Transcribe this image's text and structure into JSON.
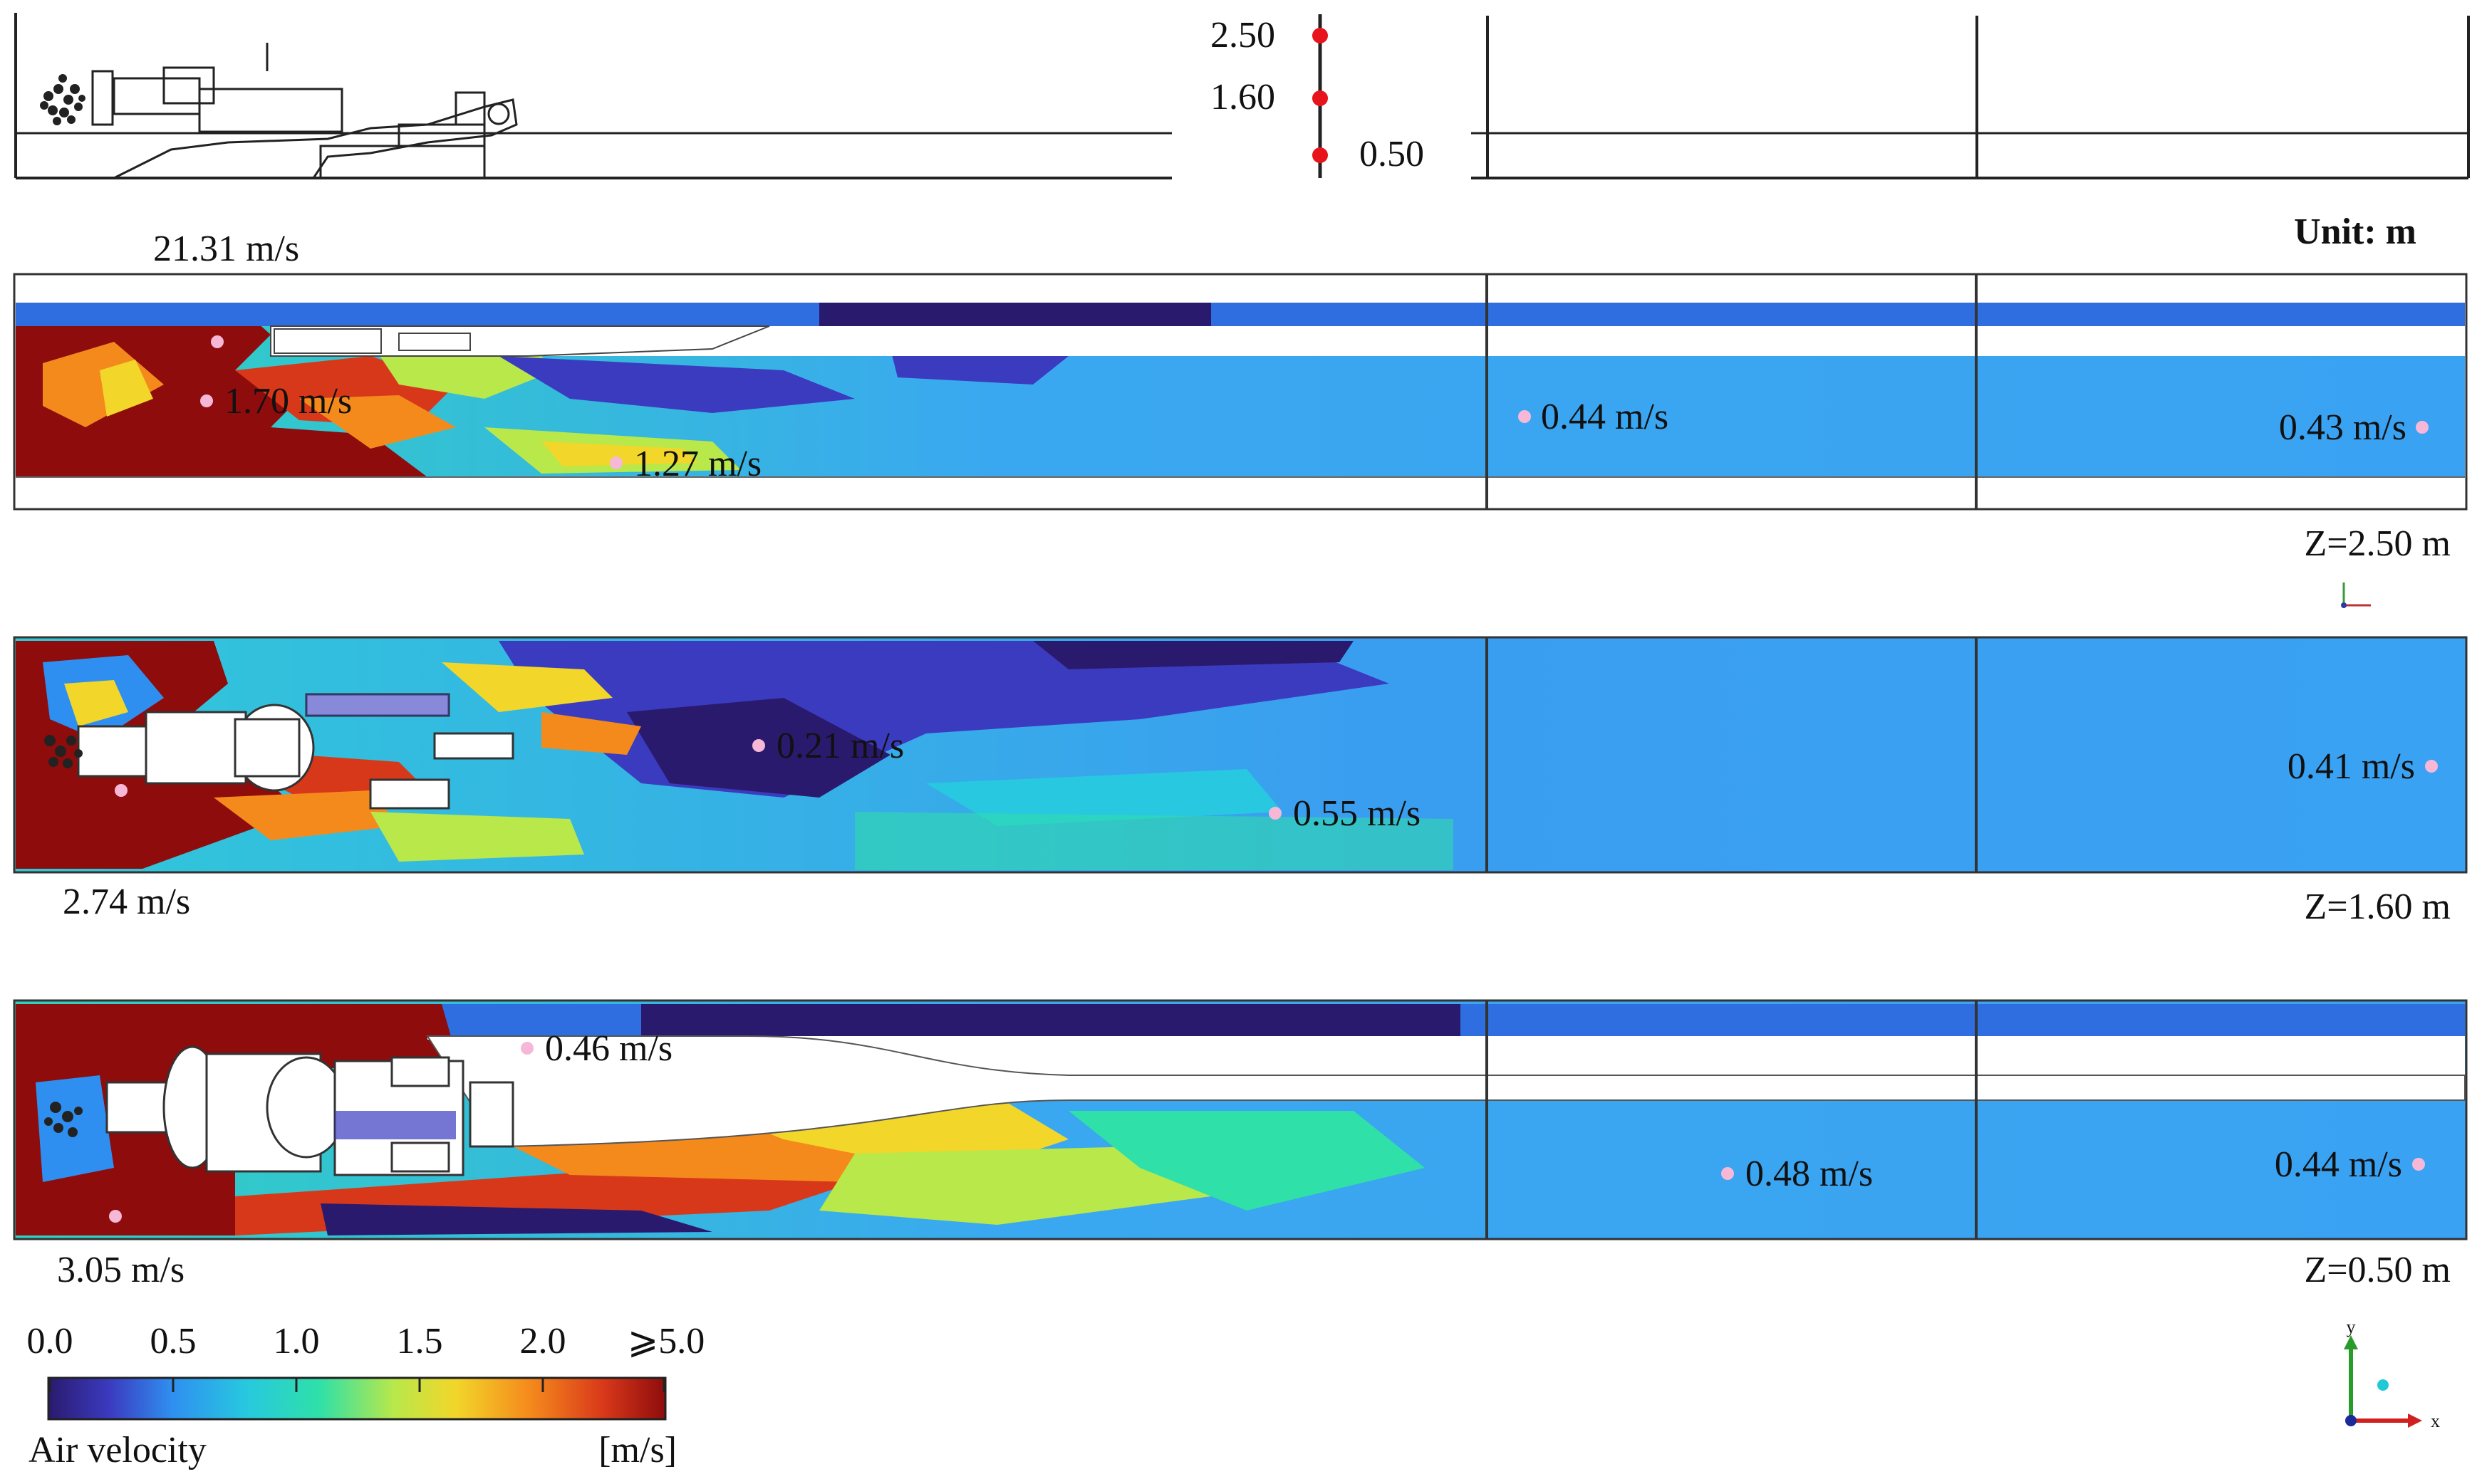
{
  "height_markers": [
    {
      "value": "2.50",
      "text": "2.50"
    },
    {
      "value": "1.60",
      "text": "1.60"
    },
    {
      "value": "0.50",
      "text": "0.50"
    }
  ],
  "unit_label": "Unit: m",
  "panels": [
    {
      "plane": "Z=2.50 m",
      "inlet_velocity": "21.31 m/s",
      "probes": [
        "1.70 m/s",
        "1.27 m/s",
        "0.44 m/s",
        "0.43 m/s"
      ]
    },
    {
      "plane": "Z=1.60 m",
      "inlet_velocity": "2.74 m/s",
      "probes": [
        "0.21 m/s",
        "0.55 m/s",
        "0.41 m/s"
      ]
    },
    {
      "plane": "Z=0.50 m",
      "inlet_velocity": "3.05 m/s",
      "probes": [
        "0.46 m/s",
        "0.48 m/s",
        "0.44 m/s"
      ]
    }
  ],
  "legend": {
    "ticks": [
      "0.0",
      "0.5",
      "1.0",
      "1.5",
      "2.0",
      "⩾5.0"
    ],
    "quantity": "Air velocity",
    "unit": "[m/s]",
    "colors": [
      "#2a1a6e",
      "#3b3bc0",
      "#2f8ff0",
      "#27c8e0",
      "#2fe0a8",
      "#b8e84a",
      "#f2d62a",
      "#f58a1c",
      "#d8381a",
      "#8e0c0c"
    ]
  },
  "axes": {
    "x": "x",
    "y": "y"
  }
}
